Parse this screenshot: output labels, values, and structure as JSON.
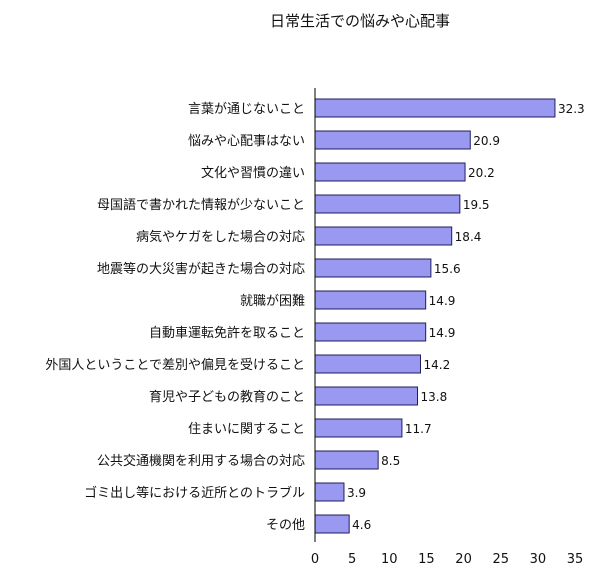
{
  "chart_data": {
    "type": "bar",
    "orientation": "horizontal",
    "title": "日常生活での悩みや心配事",
    "categories": [
      "言葉が通じないこと",
      "悩みや心配事はない",
      "文化や習慣の違い",
      "母国語で書かれた情報が少ないこと",
      "病気やケガをした場合の対応",
      "地震等の大災害が起きた場合の対応",
      "就職が困難",
      "自動車運転免許を取ること",
      "外国人ということで差別や偏見を受けること",
      "育児や子どもの教育のこと",
      "住まいに関すること",
      "公共交通機関を利用する場合の対応",
      "ゴミ出し等における近所とのトラブル",
      "その他"
    ],
    "values": [
      32.3,
      20.9,
      20.2,
      19.5,
      18.4,
      15.6,
      14.9,
      14.9,
      14.2,
      13.8,
      11.7,
      8.5,
      3.9,
      4.6
    ],
    "value_labels": [
      "32.3",
      "20.9",
      "20.2",
      "19.5",
      "18.4",
      "15.6",
      "14.9",
      "14.9",
      "14.2",
      "13.8",
      "11.7",
      "8.5",
      "3.9",
      "4.6"
    ],
    "xlim": [
      0,
      35
    ],
    "xticks": [
      0,
      5,
      10,
      15,
      20,
      25,
      30,
      35
    ],
    "xtick_labels": [
      "0",
      "5",
      "10",
      "15",
      "20",
      "25",
      "30",
      "35"
    ],
    "grid": false,
    "legend": "none",
    "colors": {
      "bar_fill": "#9a99f2",
      "bar_stroke": "#1f1f5a",
      "axis": "#000000"
    }
  }
}
